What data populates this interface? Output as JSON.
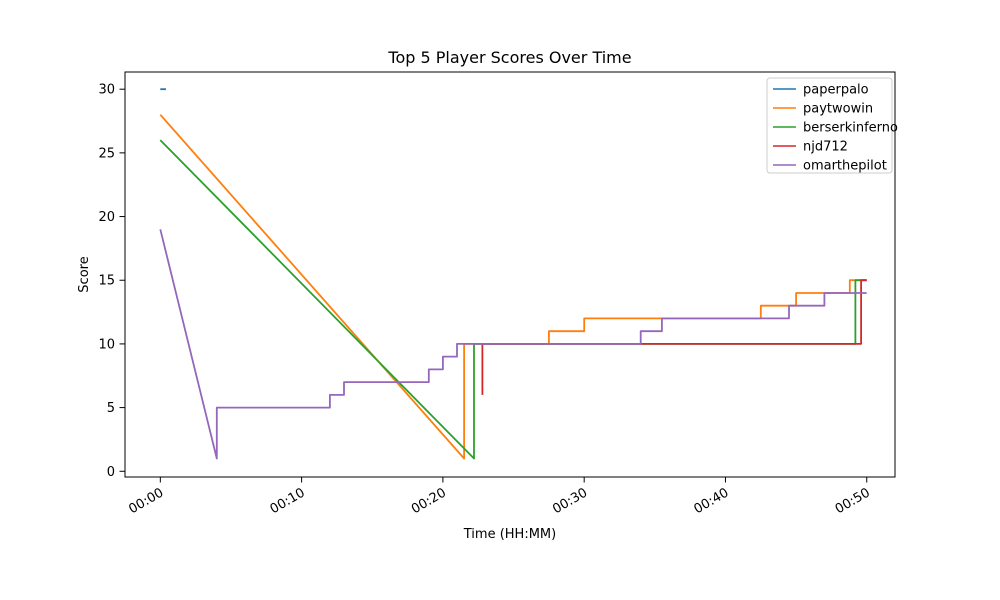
{
  "chart_data": {
    "type": "line",
    "title": "Top 5 Player Scores Over Time",
    "xlabel": "Time (HH:MM)",
    "ylabel": "Score",
    "xlim": [
      -2.5,
      52
    ],
    "ylim": [
      -0.45,
      31.35
    ],
    "grid": false,
    "legend_position": "upper right",
    "xticks": {
      "values": [
        0,
        10,
        20,
        30,
        40,
        50
      ],
      "labels": [
        "00:00",
        "00:10",
        "00:20",
        "00:30",
        "00:40",
        "00:50"
      ]
    },
    "yticks": {
      "values": [
        0,
        5,
        10,
        15,
        20,
        25,
        30
      ],
      "labels": [
        "0",
        "5",
        "10",
        "15",
        "20",
        "25",
        "30"
      ]
    },
    "series": [
      {
        "name": "paperpalo",
        "color": "#1f77b4",
        "points": [
          [
            0,
            30
          ],
          [
            0.4,
            30
          ]
        ]
      },
      {
        "name": "paytwowin",
        "color": "#ff7f0e",
        "points": [
          [
            0,
            28
          ],
          [
            21.5,
            1
          ],
          [
            21.5,
            10
          ],
          [
            27.5,
            10
          ],
          [
            27.5,
            11
          ],
          [
            30,
            11
          ],
          [
            30,
            12
          ],
          [
            42.5,
            12
          ],
          [
            42.5,
            13
          ],
          [
            45,
            13
          ],
          [
            45,
            14
          ],
          [
            48.8,
            14
          ],
          [
            48.8,
            15
          ],
          [
            50,
            15
          ]
        ]
      },
      {
        "name": "berserkinferno",
        "color": "#2ca02c",
        "points": [
          [
            0,
            26
          ],
          [
            22.2,
            1
          ],
          [
            22.2,
            10
          ],
          [
            49.2,
            10
          ],
          [
            49.2,
            15
          ],
          [
            50,
            15
          ]
        ]
      },
      {
        "name": "njd712",
        "color": "#d62728",
        "points": [
          [
            22.8,
            6
          ],
          [
            22.8,
            10
          ],
          [
            49.6,
            10
          ],
          [
            49.6,
            15
          ],
          [
            50,
            15
          ]
        ]
      },
      {
        "name": "omarthepilot",
        "color": "#9467bd",
        "points": [
          [
            0,
            19
          ],
          [
            4,
            1
          ],
          [
            4,
            5
          ],
          [
            12,
            5
          ],
          [
            12,
            6
          ],
          [
            13,
            6
          ],
          [
            13,
            7
          ],
          [
            19,
            7
          ],
          [
            19,
            8
          ],
          [
            20,
            8
          ],
          [
            20,
            9
          ],
          [
            21,
            9
          ],
          [
            21,
            10
          ],
          [
            34,
            10
          ],
          [
            34,
            11
          ],
          [
            35.5,
            11
          ],
          [
            35.5,
            12
          ],
          [
            44.5,
            12
          ],
          [
            44.5,
            13
          ],
          [
            47,
            13
          ],
          [
            47,
            14
          ],
          [
            50,
            14
          ]
        ]
      }
    ]
  }
}
